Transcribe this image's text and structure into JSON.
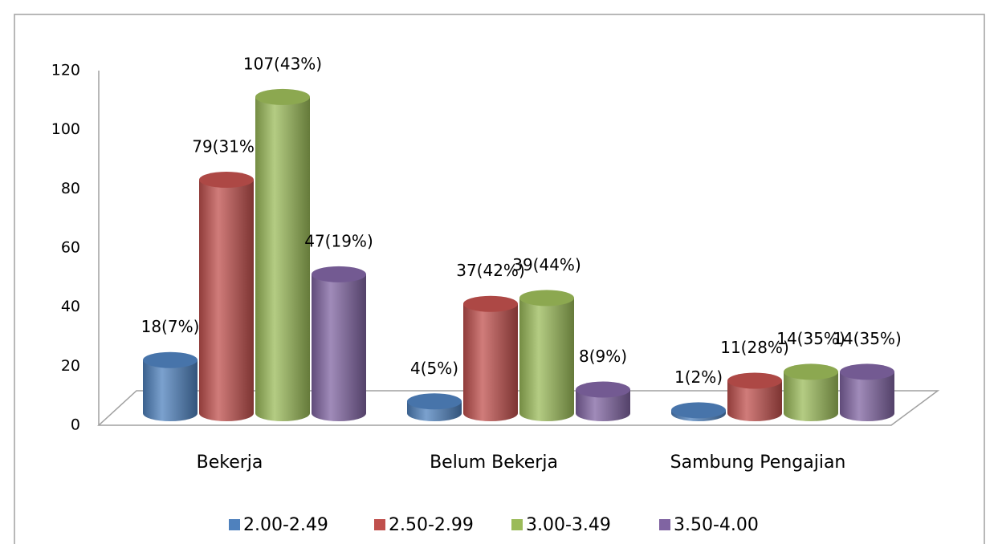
{
  "chart_data": {
    "type": "bar3d",
    "categories": [
      "Bekerja",
      "Belum Bekerja",
      "Sambung Pengajian"
    ],
    "series": [
      {
        "name": "2.00-2.49",
        "color": "#4f81bd",
        "values": [
          18,
          4,
          1
        ],
        "value_labels": [
          "18(7%)",
          "4(5%)",
          "1(2%)"
        ]
      },
      {
        "name": "2.50-2.99",
        "color": "#c0504d",
        "values": [
          79,
          37,
          11
        ],
        "value_labels": [
          "79(31%)",
          "37(42%)",
          "11(28%)"
        ]
      },
      {
        "name": "3.00-3.49",
        "color": "#9bbb59",
        "values": [
          107,
          39,
          14
        ],
        "value_labels": [
          "107(43%)",
          "39(44%)",
          "14(35%)"
        ]
      },
      {
        "name": "3.50-4.00",
        "color": "#8064a2",
        "values": [
          47,
          8,
          14
        ],
        "value_labels": [
          "47(19%)",
          "8(9%)",
          "14(35%)"
        ]
      }
    ],
    "ylim": [
      0,
      120
    ],
    "yticks": [
      0,
      20,
      40,
      60,
      80,
      100,
      120
    ],
    "legend": "bottom"
  }
}
